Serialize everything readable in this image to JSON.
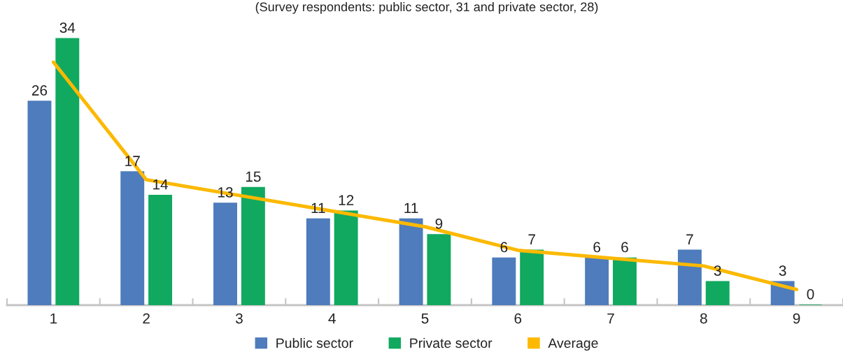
{
  "chart_data": {
    "type": "bar",
    "subtitle": "(Survey respondents: public sector, 31 and private sector, 28)",
    "categories": [
      "1",
      "2",
      "3",
      "4",
      "5",
      "6",
      "7",
      "8",
      "9"
    ],
    "series": [
      {
        "name": "Public sector",
        "color": "#4e7cbc",
        "values": [
          26,
          17,
          13,
          11,
          11,
          6,
          6,
          7,
          3
        ],
        "value_labels": [
          "26",
          "17",
          "13",
          "11",
          "11",
          "6",
          "6",
          "7",
          "3"
        ]
      },
      {
        "name": "Private sector",
        "color": "#10a95f",
        "values": [
          34,
          14,
          15,
          12,
          9,
          7,
          6,
          3,
          0
        ],
        "value_labels": [
          "34",
          "14",
          "15",
          "12",
          "9",
          "7",
          "6",
          "3",
          "0"
        ]
      },
      {
        "name": "Average",
        "type": "line",
        "color": "#fcb900",
        "values": [
          31,
          16,
          14,
          12,
          10,
          7,
          6,
          5,
          2
        ]
      }
    ],
    "tick_labels": "x",
    "legend": "bottom"
  }
}
